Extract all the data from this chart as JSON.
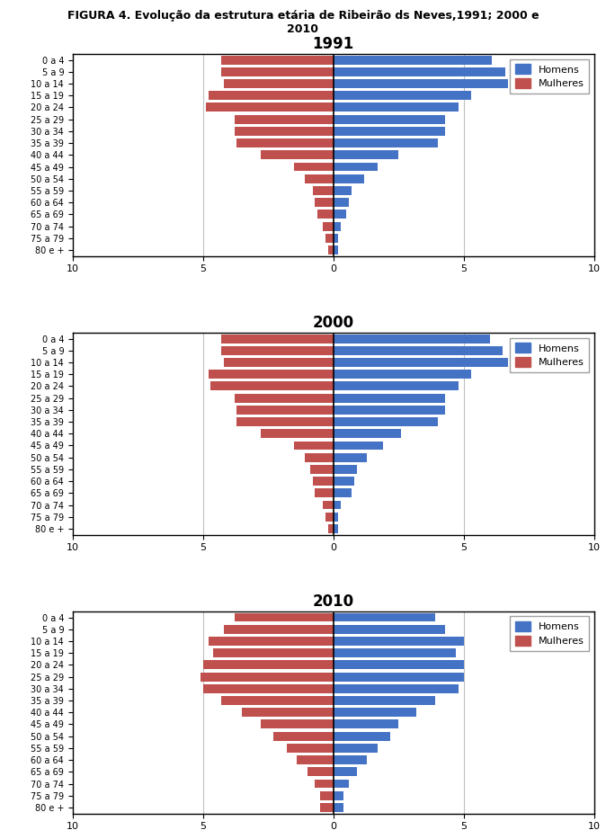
{
  "title_main": "FIGURA 4. Evolução da estrutura etária de Ribeirão ds Neves,1991; 2000 e\n2010",
  "age_labels": [
    "0 a 4",
    "5 a 9",
    "10 a 14",
    "15 a 19",
    "20 a 24",
    "25 a 29",
    "30 a 34",
    "35 a 39",
    "40 a 44",
    "45 a 49",
    "50 a 54",
    "55 a 59",
    "60 a 64",
    "65 a 69",
    "70 a 74",
    "75 a 79",
    "80 e +"
  ],
  "years": [
    "1991",
    "2000",
    "2010"
  ],
  "men_color": "#4472C4",
  "women_color": "#C0504D",
  "homens_label": "Homens",
  "mulheres_label": "Mulheres",
  "xlim": [
    -10,
    10
  ],
  "xticks": [
    -10,
    -5,
    0,
    5,
    10
  ],
  "xticklabels": [
    "10",
    "5",
    "0",
    "5",
    "10"
  ],
  "data": {
    "1991": {
      "men": [
        6.1,
        6.6,
        6.7,
        5.3,
        4.8,
        4.3,
        4.3,
        4.0,
        2.5,
        1.7,
        1.2,
        0.7,
        0.6,
        0.5,
        0.3,
        0.2,
        0.2
      ],
      "women": [
        4.3,
        4.3,
        4.2,
        4.8,
        4.9,
        3.8,
        3.8,
        3.7,
        2.8,
        1.5,
        1.1,
        0.8,
        0.7,
        0.6,
        0.4,
        0.3,
        0.2
      ]
    },
    "2000": {
      "men": [
        6.0,
        6.5,
        6.7,
        5.3,
        4.8,
        4.3,
        4.3,
        4.0,
        2.6,
        1.9,
        1.3,
        0.9,
        0.8,
        0.7,
        0.3,
        0.2,
        0.2
      ],
      "women": [
        4.3,
        4.3,
        4.2,
        4.8,
        4.7,
        3.8,
        3.7,
        3.7,
        2.8,
        1.5,
        1.1,
        0.9,
        0.8,
        0.7,
        0.4,
        0.3,
        0.2
      ]
    },
    "2010": {
      "men": [
        3.9,
        4.3,
        5.0,
        4.7,
        5.0,
        5.0,
        4.8,
        3.9,
        3.2,
        2.5,
        2.2,
        1.7,
        1.3,
        0.9,
        0.6,
        0.4,
        0.4
      ],
      "women": [
        3.8,
        4.2,
        4.8,
        4.6,
        5.0,
        5.1,
        5.0,
        4.3,
        3.5,
        2.8,
        2.3,
        1.8,
        1.4,
        1.0,
        0.7,
        0.5,
        0.5
      ]
    }
  }
}
